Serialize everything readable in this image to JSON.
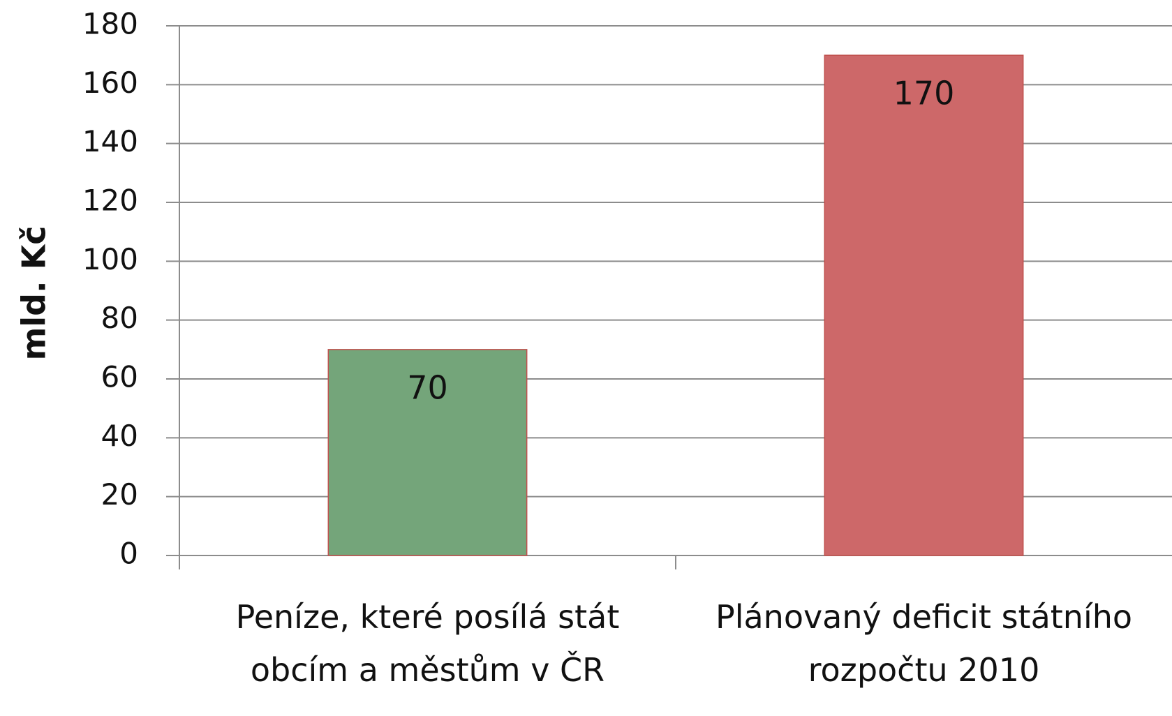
{
  "chart_data": {
    "type": "bar",
    "y_label": "mld. Kč",
    "categories": [
      "Peníze, které posílá stát obcím a městům v ČR",
      "Plánovaný deficit státního rozpočtu 2010"
    ],
    "values": [
      70,
      170
    ],
    "colors": [
      "#74a57a",
      "#cd6869"
    ],
    "ylim": [
      0,
      180
    ],
    "yticks": [
      0,
      20,
      40,
      60,
      80,
      100,
      120,
      140,
      160,
      180
    ],
    "grid": true
  }
}
